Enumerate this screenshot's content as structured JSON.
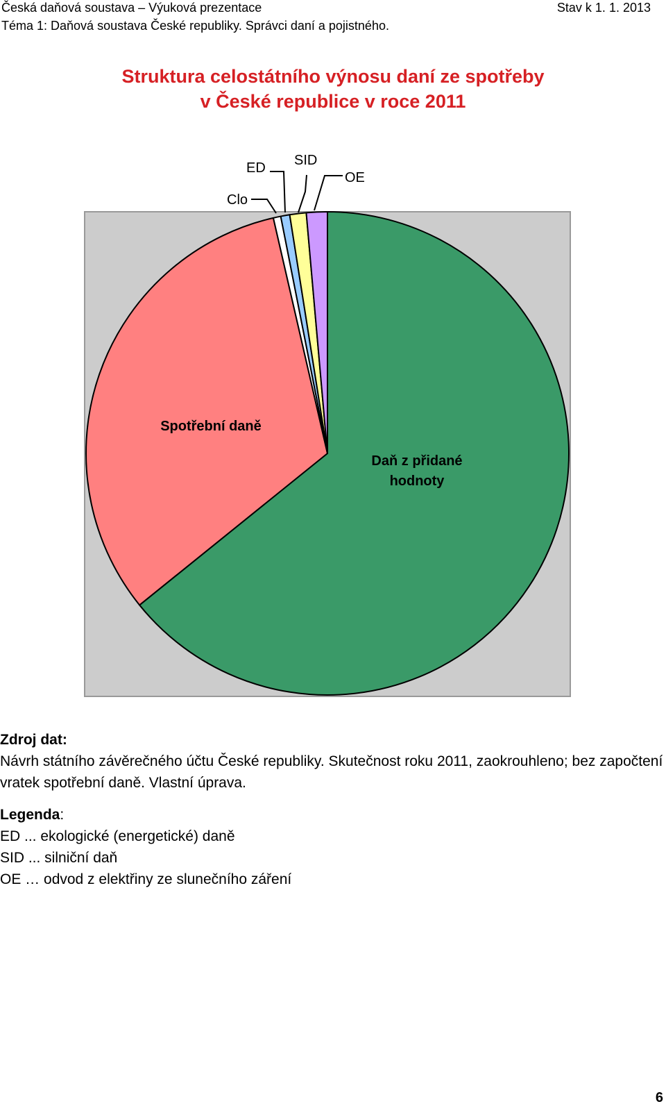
{
  "header": {
    "left_line1": "Česká daňová soustava – Výuková prezentace",
    "left_line2": "Téma 1: Daňová soustava České republiky. Správci daní a pojistného.",
    "right": "Stav k 1. 1. 2013"
  },
  "title": {
    "line1": "Struktura celostátního výnosu daní ze spotřeby",
    "line2": "v České republice v roce 2011"
  },
  "chart_data": {
    "type": "pie",
    "slices": [
      {
        "label": "Daň z přidané hodnoty",
        "value": 64.2,
        "color": "#3a9a68"
      },
      {
        "label": "Spotřební daně",
        "value": 32.2,
        "color": "#ff8080"
      },
      {
        "label": "Clo",
        "value": 0.5,
        "color": "#ffffff"
      },
      {
        "label": "ED",
        "value": 0.6,
        "color": "#99ccff"
      },
      {
        "label": "SID",
        "value": 1.1,
        "color": "#ffff99"
      },
      {
        "label": "OE",
        "value": 1.4,
        "color": "#cc99ff"
      }
    ],
    "plot_background": "#cccccc",
    "start": "12 o'clock, clockwise"
  },
  "labels": {
    "vat_line1": "Daň z přidané",
    "vat_line2": "hodnoty",
    "excise": "Spotřební daně",
    "clo": "Clo",
    "ed": "ED",
    "sid": "SID",
    "oe": "OE"
  },
  "source": {
    "heading": "Zdroj dat:",
    "text": "Návrh státního závěrečného účtu České republiky. Skutečnost roku 2011, zaokrouhleno; bez započtení vratek spotřební daně. Vlastní úprava."
  },
  "legend": {
    "heading": "Legenda",
    "colon": ":",
    "items": [
      "ED ... ekologické (energetické) daně",
      "SID ... silniční daň",
      "OE … odvod z elektřiny ze slunečního záření"
    ]
  },
  "page_number": "6"
}
